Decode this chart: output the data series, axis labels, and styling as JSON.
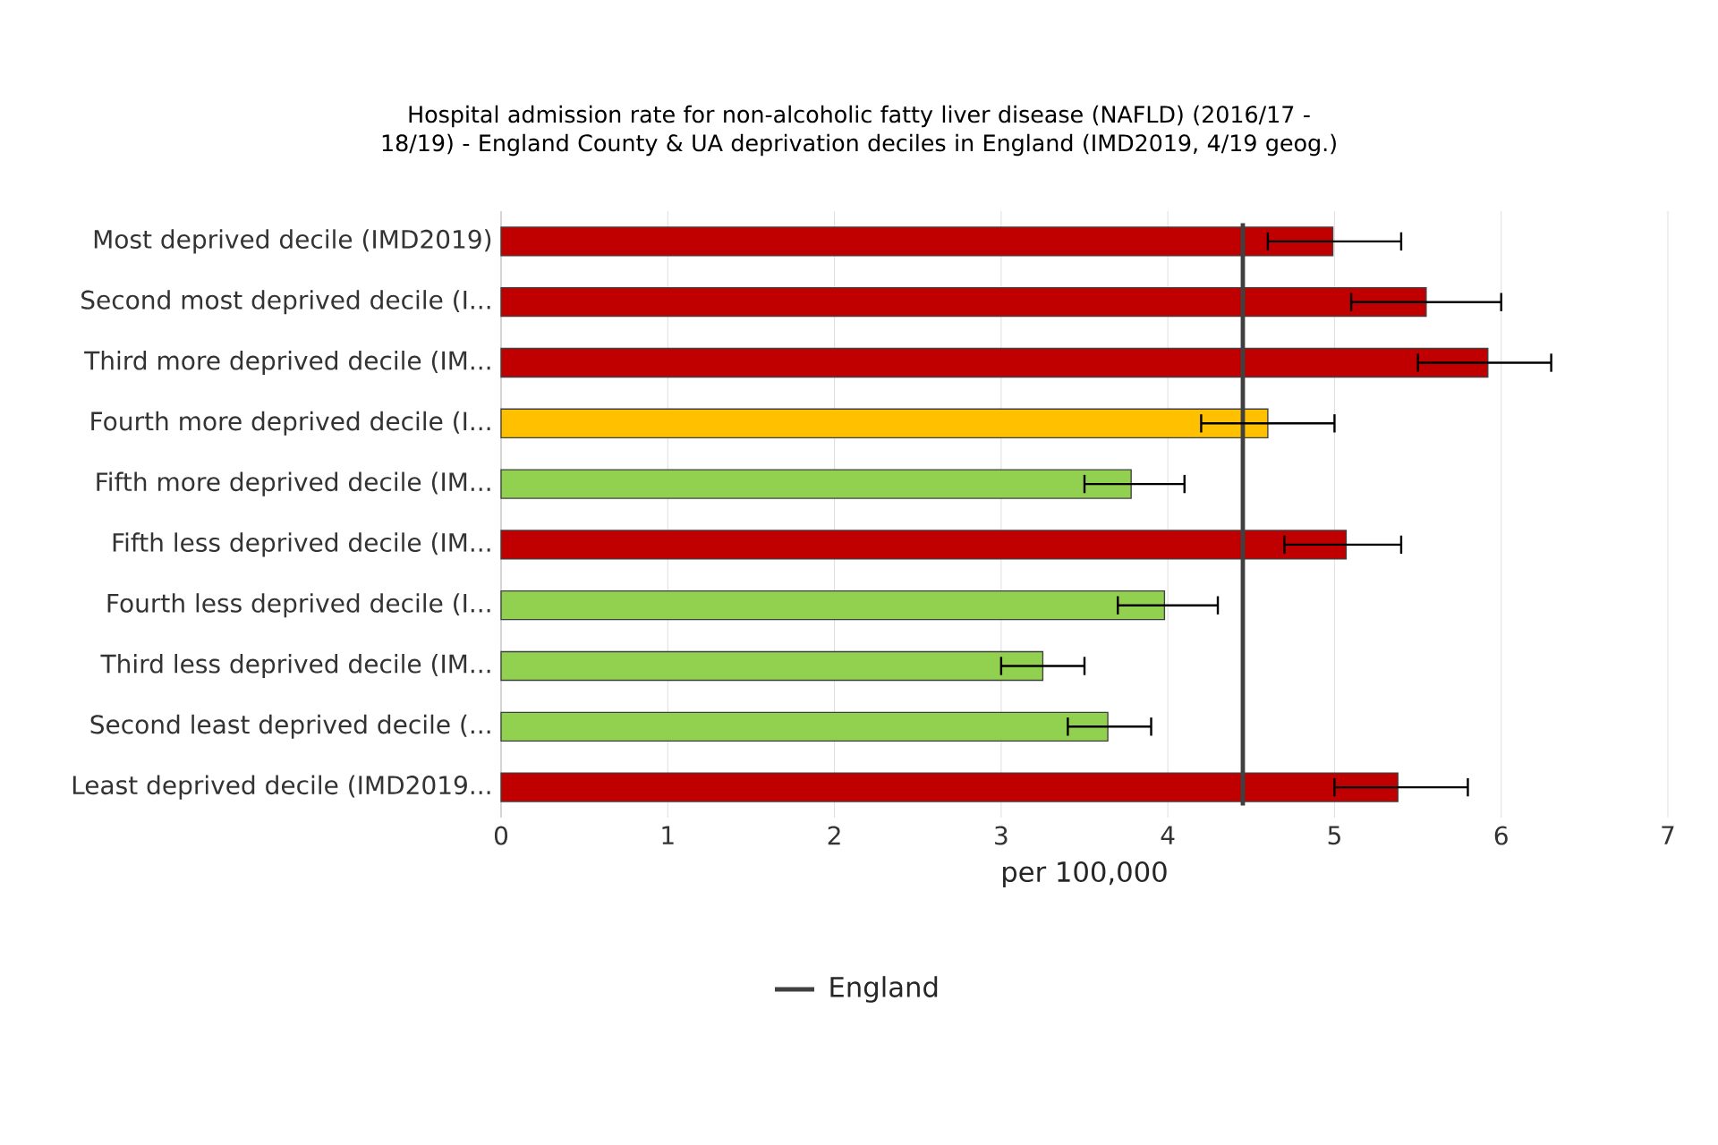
{
  "chart_data": {
    "type": "bar",
    "orientation": "horizontal",
    "title": "Hospital admission rate for non-alcoholic fatty liver disease (NAFLD) (2016/17 - 18/19) - England County & UA deprivation deciles in England (IMD2019, 4/19 geog.)",
    "xlabel": "per 100,000",
    "categories": [
      "Most deprived decile (IMD2019)",
      "Second most deprived decile (I...",
      "Third more deprived decile (IM...",
      "Fourth more deprived decile (I...",
      "Fifth more deprived decile (IM...",
      "Fifth less deprived decile (IM...",
      "Fourth less deprived decile (I...",
      "Third less deprived decile (IM...",
      "Second least deprived decile (...",
      "Least deprived decile (IMD2019..."
    ],
    "values": [
      4.99,
      5.55,
      5.92,
      4.6,
      3.78,
      5.07,
      3.98,
      3.25,
      3.64,
      5.38
    ],
    "colors": [
      "#c00000",
      "#c00000",
      "#c00000",
      "#ffc000",
      "#92d050",
      "#c00000",
      "#92d050",
      "#92d050",
      "#92d050",
      "#c00000"
    ],
    "errors": [
      [
        4.6,
        5.4
      ],
      [
        5.1,
        6.0
      ],
      [
        5.5,
        6.3
      ],
      [
        4.2,
        5.0
      ],
      [
        3.5,
        4.1
      ],
      [
        4.7,
        5.4
      ],
      [
        3.7,
        4.3
      ],
      [
        3.0,
        3.5
      ],
      [
        3.4,
        3.9
      ],
      [
        5.0,
        5.8
      ]
    ],
    "xlim": [
      0,
      7
    ],
    "xticks": [
      0,
      1,
      2,
      3,
      4,
      5,
      6,
      7
    ],
    "ref_lines": [
      {
        "axis": "x",
        "value": 4.45,
        "label": "England",
        "color": "#404040"
      }
    ],
    "grid": "x",
    "legend": "bottom"
  }
}
